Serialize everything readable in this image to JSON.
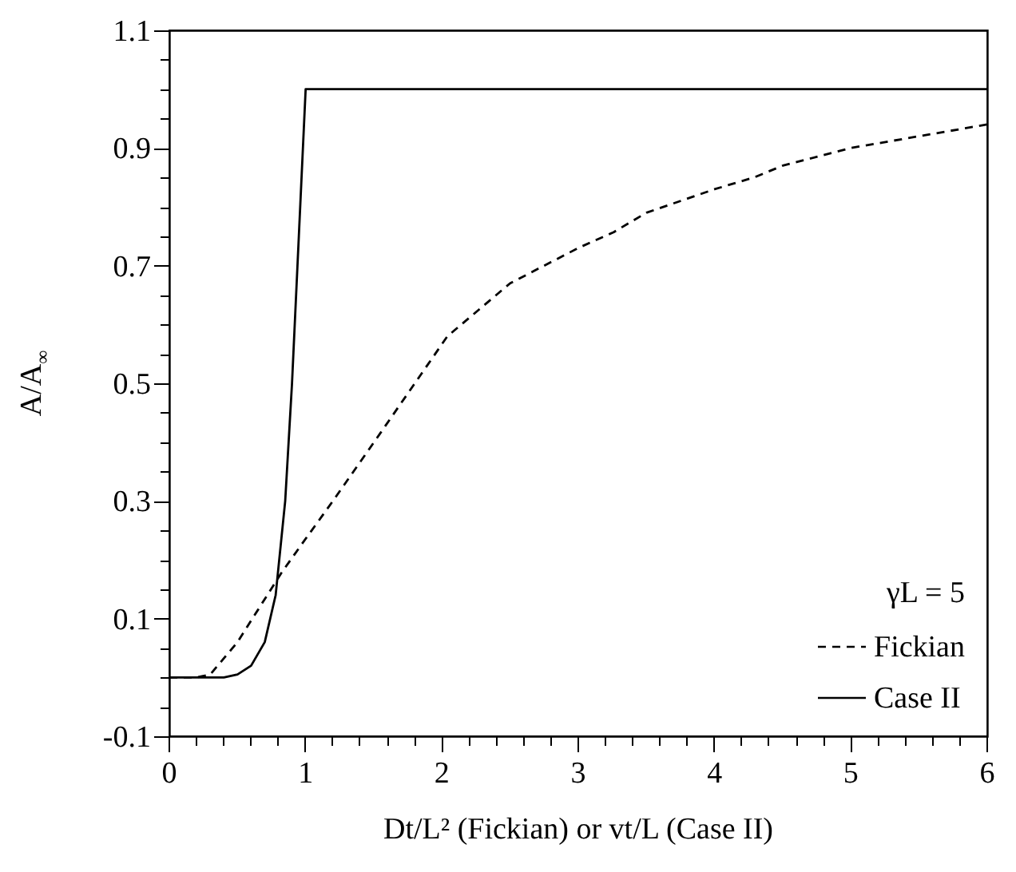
{
  "chart_data": {
    "type": "line",
    "xlabel": "Dt/L² (Fickian) or vt/L (Case II)",
    "ylabel": "A/A$_{∞}$",
    "legend_title": "γL = 5",
    "legend": "bottom right",
    "xlim": [
      0,
      6
    ],
    "ylim": [
      -0.1,
      1.1
    ],
    "xticks": [
      0,
      {
        "value": 0.2,
        "label": null
      },
      {
        "value": 0.4,
        "label": null
      },
      {
        "value": 0.6,
        "label": null
      },
      {
        "value": 0.8,
        "label": null
      },
      1,
      {
        "value": 1.2,
        "label": null
      },
      {
        "value": 1.4,
        "label": null
      },
      {
        "value": 1.6,
        "label": null
      },
      {
        "value": 1.8,
        "label": null
      },
      2,
      {
        "value": 2.2,
        "label": null
      },
      {
        "value": 2.4,
        "label": null
      },
      {
        "value": 2.6,
        "label": null
      },
      {
        "value": 2.8,
        "label": null
      },
      3,
      {
        "value": 3.2,
        "label": null
      },
      {
        "value": 3.4,
        "label": null
      },
      {
        "value": 3.6,
        "label": null
      },
      {
        "value": 3.8,
        "label": null
      },
      4,
      {
        "value": 4.2,
        "label": null
      },
      {
        "value": 4.4,
        "label": null
      },
      {
        "value": 4.6,
        "label": null
      },
      {
        "value": 4.8,
        "label": null
      },
      5,
      {
        "value": 5.2,
        "label": null
      },
      {
        "value": 5.4,
        "label": null
      },
      {
        "value": 5.6,
        "label": null
      },
      {
        "value": 5.8,
        "label": null
      },
      6
    ],
    "yticks": [
      -0.1,
      {
        "value": -0.05,
        "label": null
      },
      {
        "value": 0,
        "label": null
      },
      {
        "value": 0.05,
        "label": null
      },
      0.1,
      {
        "value": 0.15,
        "label": null
      },
      {
        "value": 0.2,
        "label": null
      },
      {
        "value": 0.25,
        "label": null
      },
      0.3,
      {
        "value": 0.35,
        "label": null
      },
      {
        "value": 0.4,
        "label": null
      },
      {
        "value": 0.45,
        "label": null
      },
      0.5,
      {
        "value": 0.55,
        "label": null
      },
      {
        "value": 0.6,
        "label": null
      },
      {
        "value": 0.65,
        "label": null
      },
      0.7,
      {
        "value": 0.75,
        "label": null
      },
      {
        "value": 0.8,
        "label": null
      },
      {
        "value": 0.85,
        "label": null
      },
      0.9,
      {
        "value": 0.95,
        "label": null
      },
      {
        "value": 1,
        "label": null
      },
      {
        "value": 1.05,
        "label": null
      },
      1.1
    ],
    "grid": false,
    "series": [
      {
        "name": "Fickian",
        "color": "#000000",
        "line_style": "dashed",
        "x": [
          0,
          0.2,
          0.3,
          0.5,
          0.82,
          0.97,
          1.2,
          1.55,
          2.04,
          2.5,
          3,
          3.26,
          3.5,
          4,
          4.29,
          4.5,
          5,
          5.5,
          6
        ],
        "values": [
          0,
          0,
          0.005,
          0.06,
          0.177,
          0.226,
          0.3,
          0.416,
          0.58,
          0.67,
          0.73,
          0.757,
          0.79,
          0.83,
          0.85,
          0.87,
          0.9,
          0.92,
          0.94
        ]
      },
      {
        "name": "Case II",
        "color": "#000000",
        "line_style": "solid",
        "x": [
          0,
          0.4,
          0.5,
          0.6,
          0.7,
          0.78,
          0.85,
          0.9,
          0.95,
          1,
          6
        ],
        "values": [
          0,
          0,
          0.005,
          0.02,
          0.06,
          0.14,
          0.3,
          0.5,
          0.75,
          1,
          1
        ]
      }
    ]
  }
}
